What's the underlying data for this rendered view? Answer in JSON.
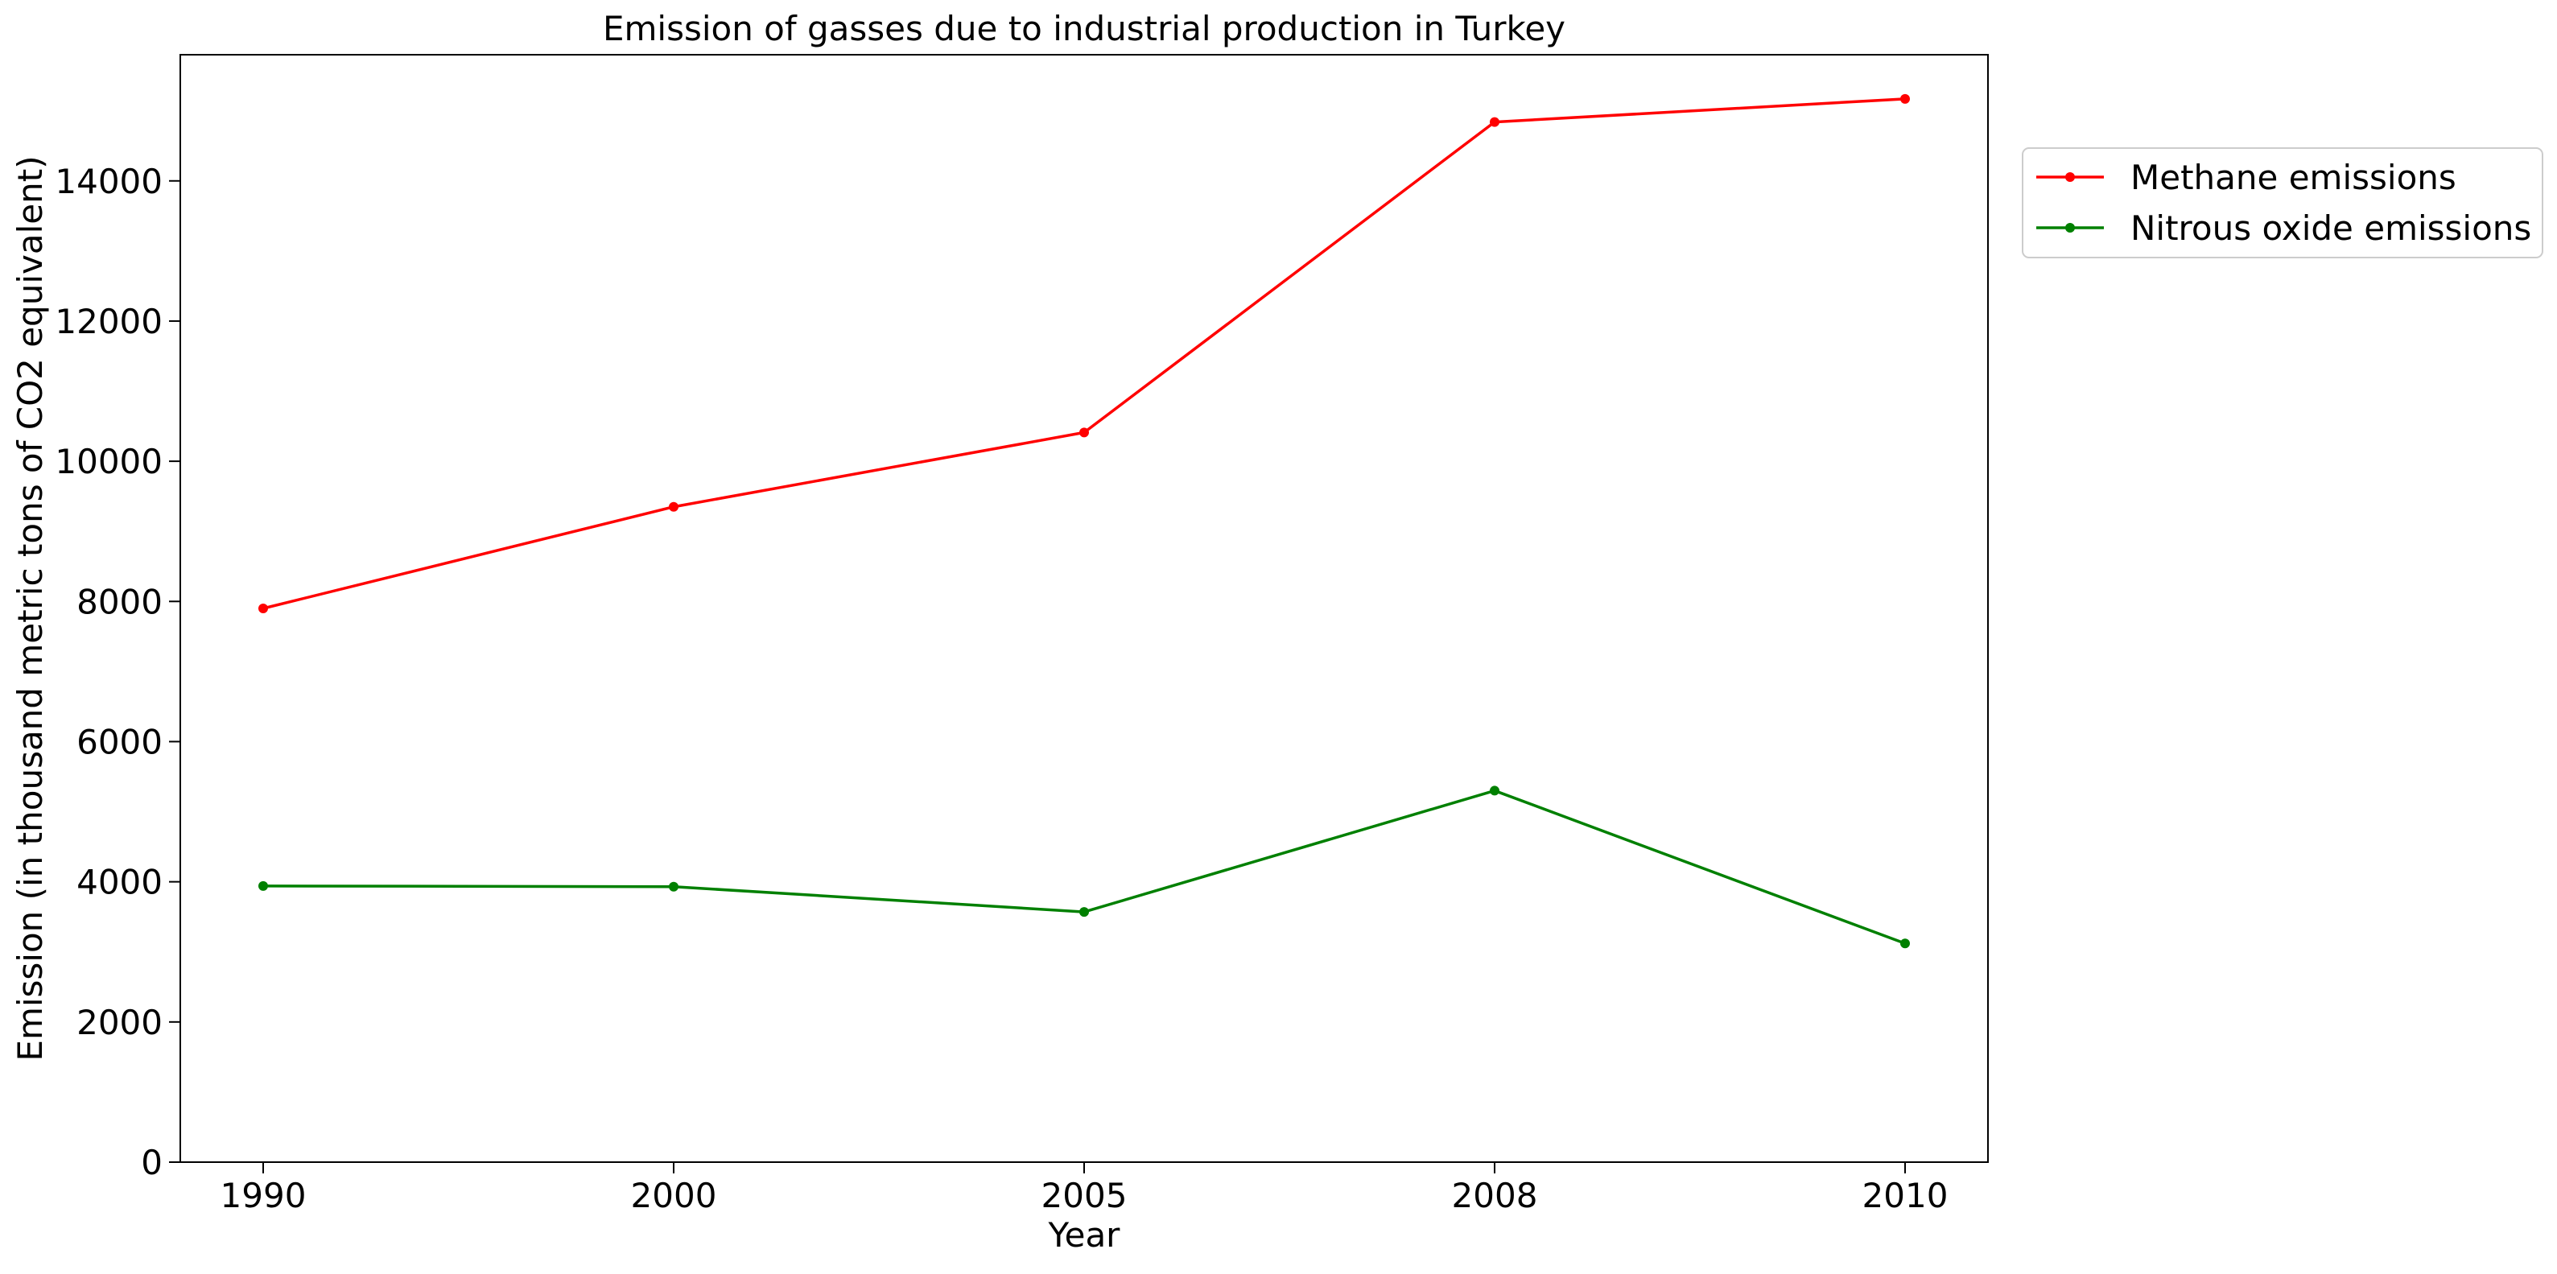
{
  "chart_data": {
    "type": "line",
    "title": "Emission of gasses due to industrial production in Turkey",
    "xlabel": "Year",
    "ylabel": "Emission (in thousand metric tons of CO2 equivalent)",
    "categories": [
      "1990",
      "2000",
      "2005",
      "2008",
      "2010"
    ],
    "ylim": [
      0,
      15800
    ],
    "yticks": [
      0,
      2000,
      4000,
      6000,
      8000,
      10000,
      12000,
      14000
    ],
    "grid": false,
    "legend_position": "outside-right-top",
    "series": [
      {
        "name": "Methane emissions",
        "color": "#ff0000",
        "values": [
          7900,
          9350,
          10410,
          14840,
          15170
        ]
      },
      {
        "name": "Nitrous oxide emissions",
        "color": "#008000",
        "values": [
          3940,
          3930,
          3570,
          5300,
          3120
        ]
      }
    ]
  }
}
